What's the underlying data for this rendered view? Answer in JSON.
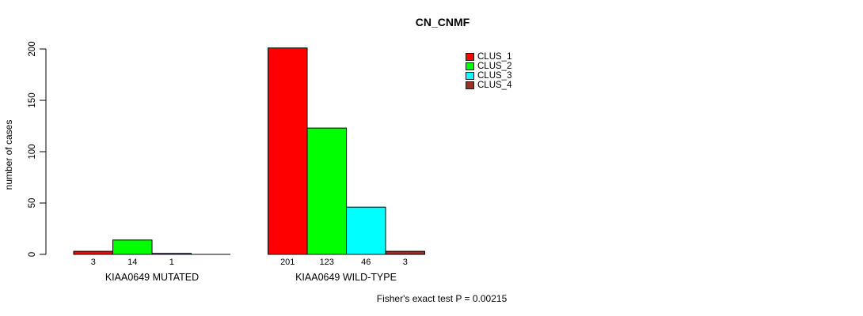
{
  "chart_data": {
    "type": "bar",
    "title": "CN_CNMF",
    "ylabel": "number of cases",
    "xlabel": "",
    "ylim": [
      0,
      200
    ],
    "yticks": [
      "0",
      "50",
      "100",
      "150",
      "200"
    ],
    "ytick_values": [
      0,
      50,
      100,
      150,
      200
    ],
    "grid": false,
    "legend_position": "top-right-inside",
    "categories": [
      "KIAA0649 MUTATED",
      "KIAA0649 WILD-TYPE"
    ],
    "series": [
      {
        "name": "CLUS_1",
        "color": "#ff0000",
        "values": [
          3,
          201
        ]
      },
      {
        "name": "CLUS_2",
        "color": "#00ff00",
        "values": [
          14,
          123
        ]
      },
      {
        "name": "CLUS_3",
        "color": "#00ffff",
        "values": [
          1,
          46
        ]
      },
      {
        "name": "CLUS_4",
        "color": "#a52a2a",
        "values": [
          0,
          3
        ]
      }
    ],
    "bar_labels": [
      [
        "3",
        "14",
        "1",
        ""
      ],
      [
        "201",
        "123",
        "46",
        "3"
      ]
    ],
    "annotation": "Fisher's exact test P = 0.00215",
    "axis_color": "#000000",
    "bar_border_color": "#000000"
  }
}
